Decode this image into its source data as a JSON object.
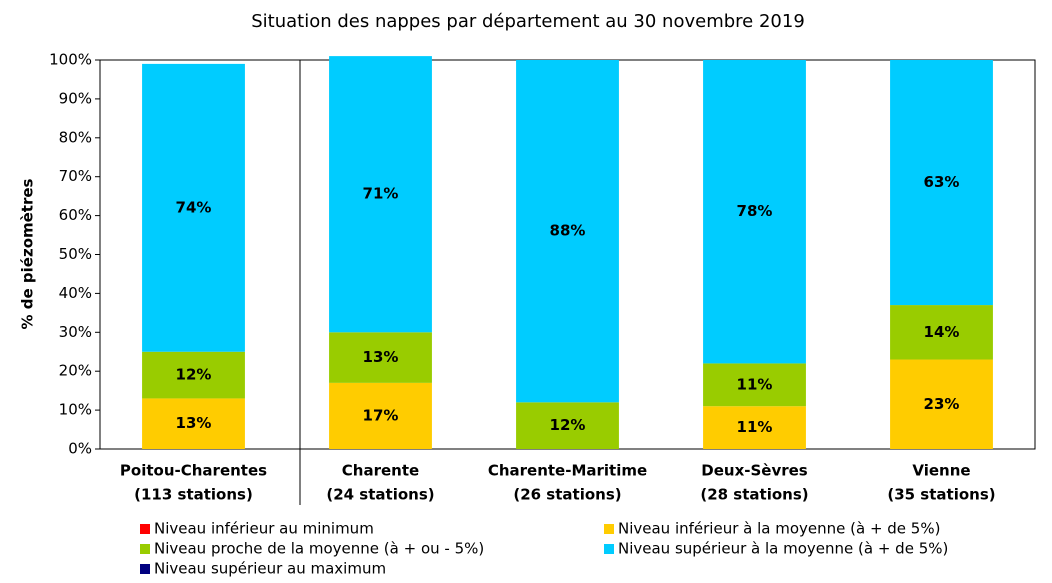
{
  "chart_data": {
    "type": "stacked_bar",
    "title": "Situation des nappes par département au 30 novembre 2019",
    "y_label": "% de piézomètres",
    "categories": [
      [
        "Poitou-Charentes",
        "(113 stations)"
      ],
      [
        "Charente",
        "(24 stations)"
      ],
      [
        "Charente-Maritime",
        "(26 stations)"
      ],
      [
        "Deux-Sèvres",
        "(28 stations)"
      ],
      [
        "Vienne",
        "(35 stations)"
      ]
    ],
    "series": [
      {
        "name": "Niveau inférieur au minimum",
        "color": "#ff0000",
        "values": [
          0,
          0,
          0,
          0,
          0
        ]
      },
      {
        "name": "Niveau inférieur à la moyenne (à + de 5%)",
        "color": "#ffcc00",
        "values": [
          13,
          17,
          0,
          11,
          23
        ],
        "value_labels": [
          "13%",
          "17%",
          null,
          "11%",
          "23%"
        ]
      },
      {
        "name": "Niveau proche de la moyenne (à + ou - 5%)",
        "color": "#99cc00",
        "values": [
          12,
          13,
          12,
          11,
          14
        ],
        "value_labels": [
          "12%",
          "13%",
          "12%",
          "11%",
          "14%"
        ]
      },
      {
        "name": "Niveau supérieur à la moyenne (à + de  5%)",
        "color": "#00ccff",
        "values": [
          74,
          71,
          88,
          78,
          63
        ],
        "value_labels": [
          "74%",
          "71%",
          "88%",
          "78%",
          "63%"
        ]
      },
      {
        "name": "Niveau supérieur au maximum",
        "color": "#000080",
        "values": [
          0,
          0,
          0,
          0,
          0
        ]
      }
    ],
    "ylim": [
      0,
      100
    ],
    "yticks": [
      {
        "value": 0,
        "label": "0%"
      },
      {
        "value": 10,
        "label": "10%"
      },
      {
        "value": 20,
        "label": "20%"
      },
      {
        "value": 30,
        "label": "30%"
      },
      {
        "value": 40,
        "label": "40%"
      },
      {
        "value": 50,
        "label": "50%"
      },
      {
        "value": 60,
        "label": "60%"
      },
      {
        "value": 70,
        "label": "70%"
      },
      {
        "value": 80,
        "label": "80%"
      },
      {
        "value": 90,
        "label": "90%"
      },
      {
        "value": 100,
        "label": "100%"
      }
    ]
  }
}
